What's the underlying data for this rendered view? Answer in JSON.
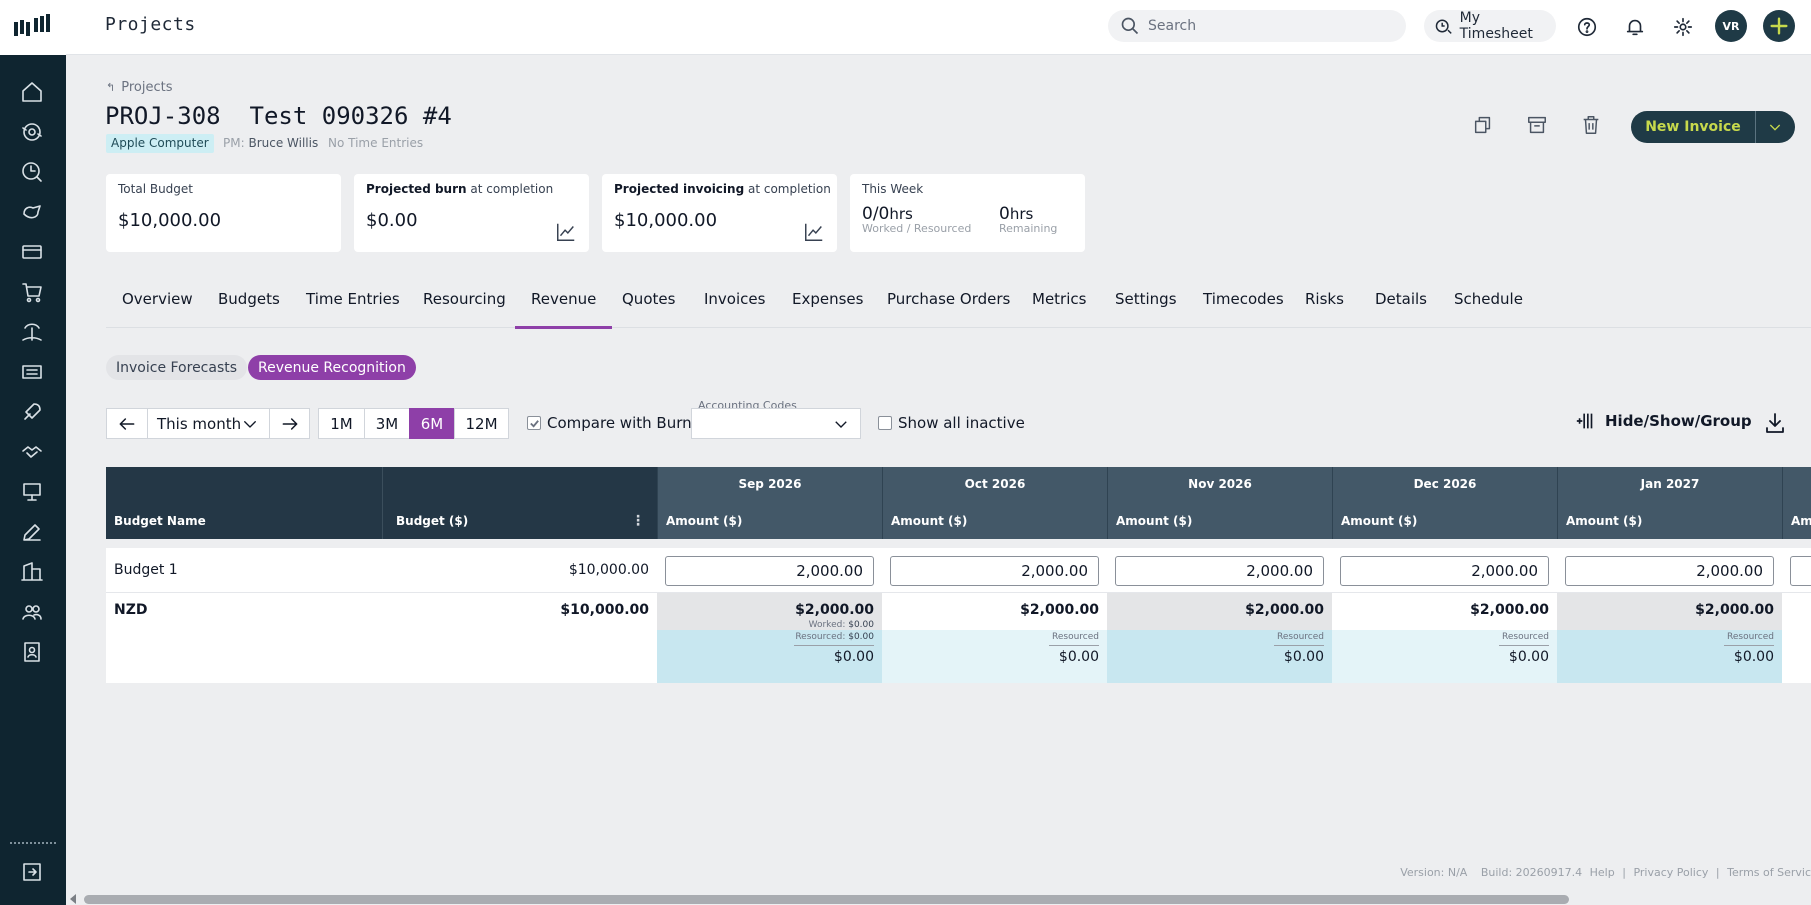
{
  "topbar": {
    "app_title": "Projects",
    "search_placeholder": "Search",
    "timesheet_label": "My Timesheet",
    "avatar_initials": "VR"
  },
  "sidebar": {
    "items": [
      "home-icon",
      "revenue-cycle-icon",
      "clock-search-icon",
      "cash-icon",
      "card-icon",
      "cart-icon",
      "island-icon",
      "ticket-icon",
      "rocket-icon",
      "handshake-icon",
      "presentation-icon",
      "edit-icon",
      "building-icon",
      "team-icon",
      "contact-icon"
    ],
    "collapse_icon": "sign-out-icon"
  },
  "header": {
    "breadcrumb": "Projects",
    "title": "PROJ-308  Test 090326 #4",
    "client": "Apple Computer",
    "pm_label": "PM:",
    "pm_name": "Bruce Willis",
    "time_status": "No Time Entries",
    "new_invoice_label": "New Invoice"
  },
  "cards": {
    "total_budget": {
      "label": "Total Budget",
      "value": "$10,000.00"
    },
    "projected_burn": {
      "label_bold": "Projected burn",
      "label_rest": " at completion",
      "value": "$0.00"
    },
    "projected_invoicing": {
      "label_bold": "Projected invoicing",
      "label_rest": " at completion",
      "value": "$10,000.00"
    },
    "this_week": {
      "label": "This Week",
      "worked": "0/0",
      "worked_unit": "hrs",
      "worked_sub": "Worked / Resourced",
      "remaining": "0",
      "remaining_unit": "hrs",
      "remaining_sub": "Remaining"
    }
  },
  "tabs": [
    "Overview",
    "Budgets",
    "Time Entries",
    "Resourcing",
    "Revenue",
    "Quotes",
    "Invoices",
    "Expenses",
    "Purchase Orders",
    "Metrics",
    "Settings",
    "Timecodes",
    "Risks",
    "Details",
    "Schedule"
  ],
  "active_tab": "Revenue",
  "subtabs": {
    "invoice_forecasts": "Invoice Forecasts",
    "revenue_recognition": "Revenue Recognition"
  },
  "controls": {
    "period_select": "This month",
    "periods": [
      "1M",
      "3M",
      "6M",
      "12M"
    ],
    "active_period": "6M",
    "compare_with_burn": "Compare with Burn",
    "compare_checked": true,
    "accounting_codes_label": "Accounting Codes",
    "show_all_inactive": "Show all inactive",
    "show_inactive_checked": false,
    "hide_show_group": "Hide/Show/Group"
  },
  "grid": {
    "col_budget_name": "Budget Name",
    "col_budget": "Budget ($)",
    "amount_label": "Amount ($)",
    "months": [
      "Sep 2026",
      "Oct 2026",
      "Nov 2026",
      "Dec 2026",
      "Jan 2027"
    ],
    "row": {
      "name": "Budget 1",
      "budget": "$10,000.00",
      "amounts": [
        "2,000.00",
        "2,000.00",
        "2,000.00",
        "2,000.00",
        "2,000.00"
      ]
    },
    "total": {
      "currency": "NZD",
      "budget": "$10,000.00",
      "amounts": [
        "$2,000.00",
        "$2,000.00",
        "$2,000.00",
        "$2,000.00",
        "$2,000.00"
      ]
    },
    "worked_label": "Worked:",
    "worked_value": "$0.00",
    "resourced_label": "Resourced:",
    "resourced_value": "$0.00",
    "resourced_short": "Resourced",
    "burn_values": [
      "$0.00",
      "$0.00",
      "$0.00",
      "$0.00",
      "$0.00"
    ],
    "partial_col_label": "Am"
  },
  "footer": {
    "version": "Version: N/A",
    "build": "Build: 20260917.4",
    "help": "Help",
    "privacy": "Privacy Policy",
    "terms": "Terms of Servic"
  },
  "colors": {
    "accent": "#8e3fa8",
    "nav_dark": "#0f2530",
    "brand_button": "#1f3a46",
    "brand_lime": "#c7d94c"
  }
}
